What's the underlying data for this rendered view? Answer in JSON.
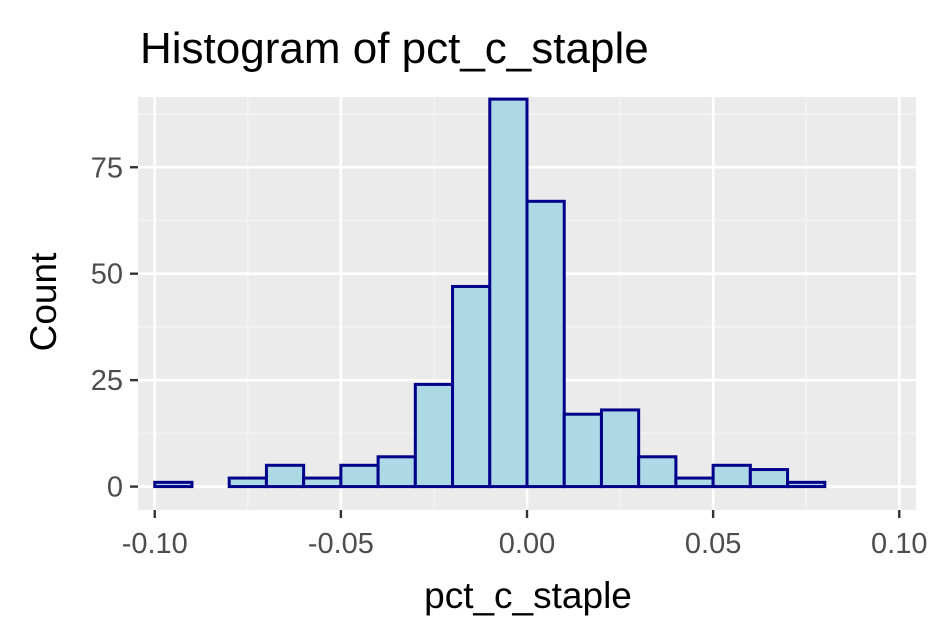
{
  "chart_data": {
    "type": "bar",
    "title": "Histogram of pct_c_staple",
    "xlabel": "pct_c_staple",
    "ylabel": "Count",
    "bin_width": 0.01,
    "x": [
      -0.095,
      -0.085,
      -0.075,
      -0.065,
      -0.055,
      -0.045,
      -0.035,
      -0.025,
      -0.015,
      -0.005,
      0.005,
      0.015,
      0.025,
      0.035,
      0.045,
      0.055,
      0.065,
      0.075,
      0.085,
      0.095
    ],
    "values": [
      1,
      0,
      2,
      5,
      2,
      5,
      7,
      24,
      47,
      91,
      67,
      17,
      18,
      7,
      2,
      5,
      4,
      1,
      0,
      0
    ],
    "xlim": [
      -0.1045,
      0.1045
    ],
    "ylim": [
      -5.5,
      91.5
    ],
    "xticks": [
      -0.1,
      -0.05,
      0.0,
      0.05,
      0.1
    ],
    "xtick_labels": [
      "-0.10",
      "-0.05",
      "0.00",
      "0.05",
      "0.10"
    ],
    "yticks": [
      0,
      25,
      50,
      75
    ],
    "ytick_labels": [
      "0",
      "25",
      "50",
      "75"
    ],
    "grid": true,
    "legend": "none",
    "colors": {
      "bar_fill": "#add8e6",
      "bar_stroke": "#00008b",
      "panel_bg": "#ebebeb",
      "grid_major": "#ffffff",
      "grid_minor": "#f5f5f5",
      "tick_text": "#4d4d4d"
    }
  }
}
